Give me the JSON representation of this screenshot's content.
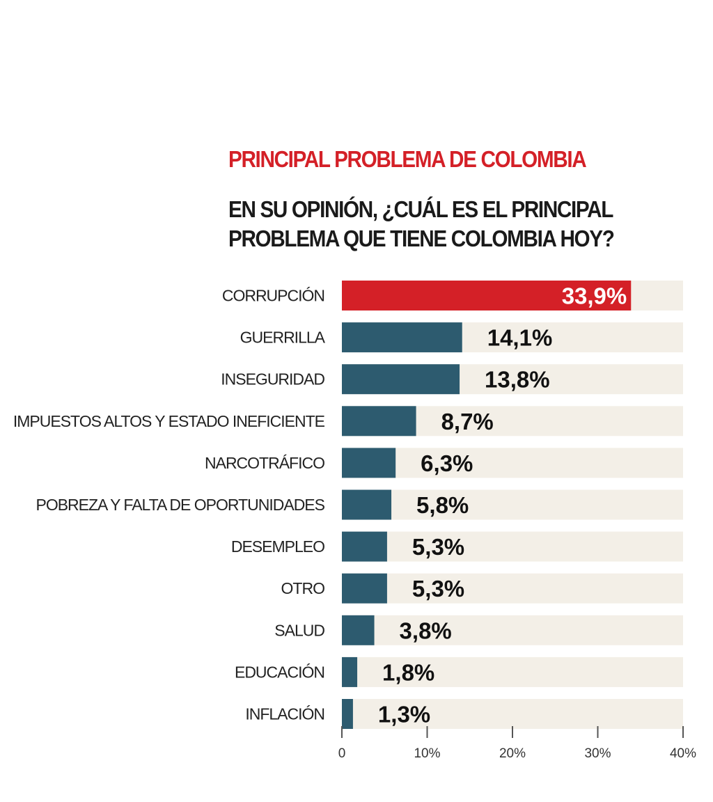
{
  "header": {
    "title": "PRINCIPAL PROBLEMA DE COLOMBIA",
    "question_line1": "EN SU OPINIÓN, ¿CUÁL ES EL PRINCIPAL",
    "question_line2": "PROBLEMA QUE TIENE COLOMBIA HOY?"
  },
  "colors": {
    "title": "#d42027",
    "highlight_bar": "#d42027",
    "bar": "#2d5b6f",
    "track": "#f3efe7"
  },
  "chart_data": {
    "type": "bar",
    "orientation": "horizontal",
    "title": "PRINCIPAL PROBLEMA DE COLOMBIA",
    "subtitle": "EN SU OPINIÓN, ¿CUÁL ES EL PRINCIPAL PROBLEMA QUE TIENE COLOMBIA HOY?",
    "categories": [
      "CORRUPCIÓN",
      "GUERRILLA",
      "INSEGURIDAD",
      "IMPUESTOS ALTOS Y ESTADO INEFICIENTE",
      "NARCOTRÁFICO",
      "POBREZA Y FALTA DE OPORTUNIDADES",
      "DESEMPLEO",
      "OTRO",
      "SALUD",
      "EDUCACIÓN",
      "INFLACIÓN"
    ],
    "values": [
      33.9,
      14.1,
      13.8,
      8.7,
      6.3,
      5.8,
      5.3,
      5.3,
      3.8,
      1.8,
      1.3
    ],
    "value_labels": [
      "33,9%",
      "14,1%",
      "13,8%",
      "8,7%",
      "6,3%",
      "5,8%",
      "5,3%",
      "5,3%",
      "3,8%",
      "1,8%",
      "1,3%"
    ],
    "highlight_index": 0,
    "xlim": [
      0,
      40
    ],
    "xticks": [
      0,
      10,
      20,
      30,
      40
    ],
    "xtick_labels": [
      "0",
      "10%",
      "20%",
      "30%",
      "40%"
    ],
    "xlabel": "",
    "ylabel": "",
    "grid": false
  }
}
